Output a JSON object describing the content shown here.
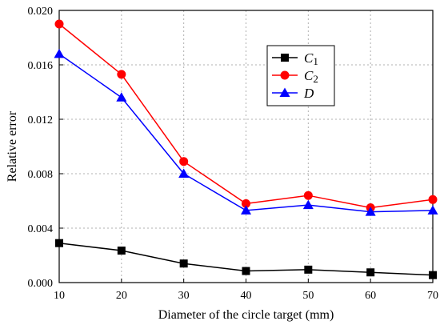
{
  "chart_data": {
    "type": "line",
    "xlabel": "Diameter of the circle target (mm)",
    "ylabel": "Relative error",
    "xlim": [
      10,
      70
    ],
    "ylim": [
      0,
      0.02
    ],
    "x_ticks": [
      "10",
      "20",
      "30",
      "40",
      "50",
      "60",
      "70"
    ],
    "y_ticks": [
      "0.000",
      "0.004",
      "0.008",
      "0.012",
      "0.016",
      "0.020"
    ],
    "grid": true,
    "legend_position": "top-right",
    "x": [
      10,
      20,
      30,
      40,
      50,
      60,
      70
    ],
    "series": [
      {
        "name": "C1",
        "name_main": "C",
        "name_sub": "1",
        "color": "#000000",
        "marker": "square",
        "values": [
          0.0029,
          0.00235,
          0.0014,
          0.00085,
          0.00095,
          0.00075,
          0.00055
        ]
      },
      {
        "name": "C2",
        "name_main": "C",
        "name_sub": "2",
        "color": "#ff0000",
        "marker": "circle",
        "values": [
          0.019,
          0.0153,
          0.0089,
          0.0058,
          0.0064,
          0.0055,
          0.0061
        ]
      },
      {
        "name": "D",
        "name_main": "D",
        "name_sub": "",
        "color": "#0000ff",
        "marker": "triangle",
        "values": [
          0.0168,
          0.0136,
          0.008,
          0.0053,
          0.0057,
          0.0052,
          0.0053
        ]
      }
    ]
  }
}
